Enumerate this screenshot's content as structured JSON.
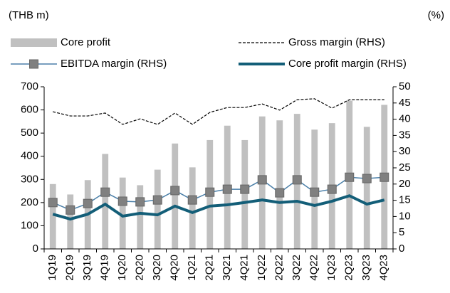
{
  "chart_data": {
    "type": "combo",
    "y_label": "(THB m)",
    "y2_label": "(%)",
    "categories": [
      "1Q19",
      "2Q19",
      "3Q19",
      "4Q19",
      "1Q20",
      "2Q20",
      "3Q20",
      "4Q20",
      "1Q21",
      "2Q21",
      "3Q21",
      "4Q21",
      "1Q22",
      "2Q22",
      "3Q22",
      "4Q22",
      "1Q23",
      "2Q23",
      "3Q23",
      "4Q23"
    ],
    "series": [
      {
        "name": "Core profit",
        "type": "bar",
        "color": "#c0c0c0",
        "values": [
          280,
          235,
          297,
          410,
          308,
          275,
          342,
          455,
          352,
          470,
          532,
          470,
          572,
          555,
          583,
          515,
          543,
          640,
          527,
          622
        ]
      },
      {
        "name": "Gross margin (RHS)",
        "type": "line",
        "axis": "y2",
        "color": "#000000",
        "dashed": true,
        "values": [
          42.3,
          41,
          41,
          41.9,
          38.4,
          40.1,
          38.4,
          41.9,
          38.4,
          42.1,
          43.6,
          43.6,
          44.7,
          42.8,
          46,
          46.3,
          43.4,
          46,
          46,
          46
        ]
      },
      {
        "name": "EBITDA margin (RHS)",
        "type": "line",
        "axis": "y2",
        "color": "#4a7fa8",
        "marker": "square",
        "marker_color": "#808080",
        "values": [
          14.3,
          12,
          14,
          17.5,
          14.7,
          14.5,
          15.1,
          18,
          15.1,
          17.5,
          18.4,
          18.4,
          21.3,
          17.3,
          21.3,
          17.5,
          18.4,
          22.1,
          21.7,
          22.1
        ]
      },
      {
        "name": "Core profit margin (RHS)",
        "type": "line",
        "axis": "y2",
        "color": "#135e78",
        "thick": true,
        "values": [
          10.7,
          9.2,
          10.7,
          13.8,
          10.1,
          11,
          10.5,
          13.2,
          11.2,
          13.2,
          13.6,
          14.3,
          15.1,
          14.3,
          14.7,
          13.4,
          14.7,
          16.4,
          13.8,
          15.1
        ]
      }
    ],
    "ylim": [
      0,
      700
    ],
    "yticks": [
      0,
      100,
      200,
      300,
      400,
      500,
      600,
      700
    ],
    "y2lim": [
      0,
      50
    ],
    "y2ticks": [
      0,
      5,
      10,
      15,
      20,
      25,
      30,
      35,
      40,
      45,
      50
    ],
    "grid": false,
    "legend": "top"
  }
}
